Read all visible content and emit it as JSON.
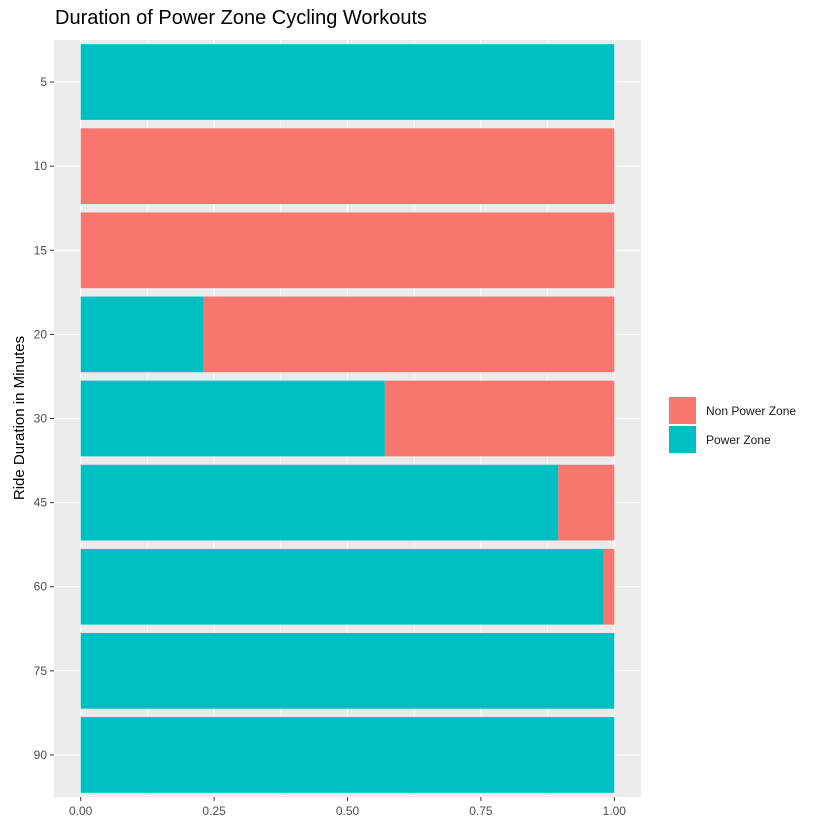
{
  "chart_data": {
    "type": "bar",
    "orientation": "horizontal",
    "stacked": "fill",
    "title": "Duration of Power Zone Cycling Workouts",
    "xlabel": "",
    "ylabel": "Ride Duration in Minutes",
    "categories": [
      "5",
      "10",
      "15",
      "20",
      "30",
      "45",
      "60",
      "75",
      "90"
    ],
    "series": [
      {
        "name": "Power Zone",
        "color": "#00BFC4",
        "values": [
          1.0,
          0.0,
          0.0,
          0.23,
          0.57,
          0.895,
          0.98,
          1.0,
          1.0
        ]
      },
      {
        "name": "Non Power Zone",
        "color": "#F8766D",
        "values": [
          0.0,
          1.0,
          1.0,
          0.77,
          0.43,
          0.105,
          0.02,
          0.0,
          0.0
        ]
      }
    ],
    "xlim": [
      -0.05,
      1.05
    ],
    "x_ticks": [
      "0.00",
      "0.25",
      "0.50",
      "0.75",
      "1.00"
    ],
    "legend": {
      "position": "right",
      "entries": [
        "Non Power Zone",
        "Power Zone"
      ]
    },
    "grid": true
  }
}
